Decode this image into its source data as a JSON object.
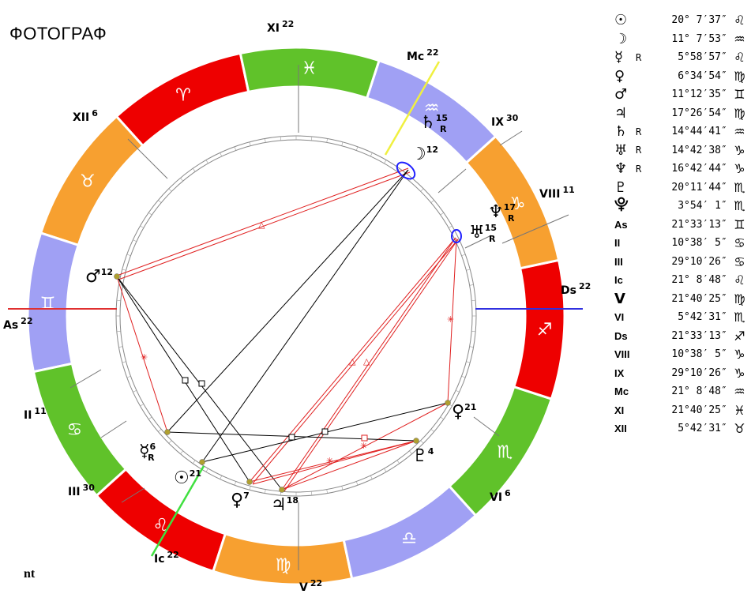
{
  "title": "ФОТОГРАФ",
  "footer": "nt",
  "houses": [
    {
      "label": "XI",
      "deg": "22"
    },
    {
      "label": "XII",
      "deg": "6"
    },
    {
      "label": "As",
      "deg": "22"
    },
    {
      "label": "II",
      "deg": "11"
    },
    {
      "label": "III",
      "deg": "30"
    },
    {
      "label": "Ic",
      "deg": "22"
    },
    {
      "label": "V",
      "deg": "22"
    },
    {
      "label": "VI",
      "deg": "6"
    },
    {
      "label": "Ds",
      "deg": "22"
    },
    {
      "label": "VIII",
      "deg": "11"
    },
    {
      "label": "IX",
      "deg": "30"
    },
    {
      "label": "Mc",
      "deg": "22"
    }
  ],
  "zodiac": [
    {
      "glyph": "♈",
      "color": "#ee0000"
    },
    {
      "glyph": "♉",
      "color": "#f7a030"
    },
    {
      "glyph": "♊",
      "color": "#a0a0f4"
    },
    {
      "glyph": "♋",
      "color": "#60c22a"
    },
    {
      "glyph": "♌",
      "color": "#ee0000"
    },
    {
      "glyph": "♍",
      "color": "#f7a030"
    },
    {
      "glyph": "♎",
      "color": "#a0a0f4"
    },
    {
      "glyph": "♏",
      "color": "#60c22a"
    },
    {
      "glyph": "♐",
      "color": "#ee0000"
    },
    {
      "glyph": "♑",
      "color": "#f7a030"
    },
    {
      "glyph": "♒",
      "color": "#a0a0f4"
    },
    {
      "glyph": "♓",
      "color": "#60c22a"
    }
  ],
  "planets_on_wheel": [
    {
      "glyph": "☽",
      "deg": "12",
      "r": ""
    },
    {
      "glyph": "♄",
      "deg": "15",
      "r": "R"
    },
    {
      "glyph": "♆",
      "deg": "17",
      "r": "R"
    },
    {
      "glyph": "♅",
      "deg": "15",
      "r": "R"
    },
    {
      "glyph": "♂",
      "deg": "12",
      "r": ""
    },
    {
      "glyph": "♀",
      "deg": "21",
      "r": ""
    },
    {
      "glyph": "♇",
      "deg": "4",
      "r": ""
    },
    {
      "glyph": "☿",
      "deg": "6",
      "r": "R"
    },
    {
      "glyph": "☉",
      "deg": "21",
      "r": ""
    },
    {
      "glyph": "♀",
      "deg": "7",
      "r": ""
    },
    {
      "glyph": "♃",
      "deg": "18",
      "r": ""
    }
  ],
  "positions": [
    {
      "sym": "☉",
      "r": "",
      "deg": "20° 7′37″",
      "sign": "♌"
    },
    {
      "sym": "☽",
      "r": "",
      "deg": "11° 7′53″",
      "sign": "♒"
    },
    {
      "sym": "☿",
      "r": "R",
      "deg": "5°58′57″",
      "sign": "♌"
    },
    {
      "sym": "♀",
      "r": "",
      "deg": "6°34′54″",
      "sign": "♍"
    },
    {
      "sym": "♂",
      "r": "",
      "deg": "11°12′35″",
      "sign": "♊"
    },
    {
      "sym": "♃",
      "r": "",
      "deg": "17°26′54″",
      "sign": "♍"
    },
    {
      "sym": "♄",
      "r": "R",
      "deg": "14°44′41″",
      "sign": "♒"
    },
    {
      "sym": "♅",
      "r": "R",
      "deg": "14°42′38″",
      "sign": "♑"
    },
    {
      "sym": "♆",
      "r": "R",
      "deg": "16°42′44″",
      "sign": "♑"
    },
    {
      "sym": "♇",
      "r": "",
      "deg": "20°11′44″",
      "sign": "♏"
    },
    {
      "sym": "⯓",
      "r": "",
      "deg": "3°54′ 1″",
      "sign": "♏"
    },
    {
      "sym": "As",
      "r": "",
      "deg": "21°33′13″",
      "sign": "♊"
    },
    {
      "sym": "II",
      "r": "",
      "deg": "10°38′ 5″",
      "sign": "♋"
    },
    {
      "sym": "III",
      "r": "",
      "deg": "29°10′26″",
      "sign": "♋"
    },
    {
      "sym": "Ic",
      "r": "",
      "deg": "21° 8′48″",
      "sign": "♌"
    },
    {
      "sym": "V",
      "r": "",
      "deg": "21°40′25″",
      "sign": "♍"
    },
    {
      "sym": "VI",
      "r": "",
      "deg": "5°42′31″",
      "sign": "♏"
    },
    {
      "sym": "Ds",
      "r": "",
      "deg": "21°33′13″",
      "sign": "♐"
    },
    {
      "sym": "VIII",
      "r": "",
      "deg": "10°38′ 5″",
      "sign": "♑"
    },
    {
      "sym": "IX",
      "r": "",
      "deg": "29°10′26″",
      "sign": "♑"
    },
    {
      "sym": "Mc",
      "r": "",
      "deg": "21° 8′48″",
      "sign": "♒"
    },
    {
      "sym": "XI",
      "r": "",
      "deg": "21°40′25″",
      "sign": "♓"
    },
    {
      "sym": "XII",
      "r": "",
      "deg": "5°42′31″",
      "sign": "♉"
    }
  ],
  "colors": {
    "axis_red": "#e03030",
    "axis_blue": "#3030e0",
    "mc_yellow": "#f0f040",
    "ic_green": "#40e040",
    "aspect_red": "#e02020",
    "aspect_black": "#000000",
    "planet_dot": "#b0a030",
    "highlight_blue": "#2020ff"
  }
}
